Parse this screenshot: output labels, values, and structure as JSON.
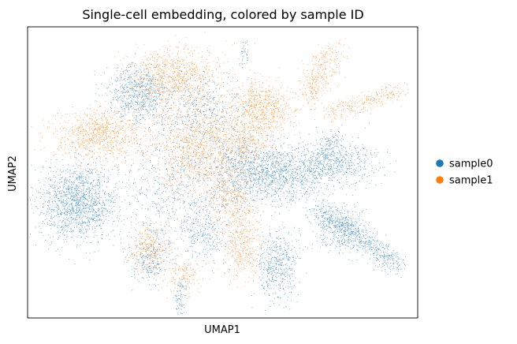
{
  "chart_data": {
    "type": "scatter",
    "title": "Single-cell embedding, colored by sample ID",
    "xlabel": "UMAP1",
    "ylabel": "UMAP2",
    "xticks": [],
    "yticks": [],
    "grid": false,
    "legend_placement": "right",
    "xlim": [
      0,
      100
    ],
    "ylim": [
      0,
      100
    ],
    "series": [
      {
        "name": "sample0",
        "color": "#1f77b4",
        "clusters": [
          {
            "cx": 13,
            "cy": 40,
            "sx": 5.0,
            "sy": 6.5,
            "n": 1500
          },
          {
            "cx": 28,
            "cy": 77,
            "sx": 4.0,
            "sy": 5.0,
            "n": 700
          },
          {
            "cx": 45,
            "cy": 72,
            "sx": 6.0,
            "sy": 6.0,
            "n": 450
          },
          {
            "cx": 40,
            "cy": 45,
            "sx": 8.0,
            "sy": 12.0,
            "n": 900
          },
          {
            "cx": 63,
            "cy": 50,
            "sx": 6.0,
            "sy": 5.0,
            "n": 1200
          },
          {
            "cx": 64,
            "cy": 18,
            "sx": 2.5,
            "sy": 6.0,
            "n": 500
          },
          {
            "cx": 80,
            "cy": 53,
            "sx": 5.0,
            "sy": 4.0,
            "n": 500
          },
          {
            "cx": 80,
            "cy": 30,
            "sx": 4.0,
            "sy": 4.0,
            "n": 350
          },
          {
            "cx": 31,
            "cy": 20,
            "sx": 2.5,
            "sy": 4.0,
            "n": 250
          },
          {
            "cx": 45,
            "cy": 28,
            "sx": 3.0,
            "sy": 4.0,
            "n": 200
          },
          {
            "cx": 53,
            "cy": 52,
            "sx": 3.0,
            "sy": 6.0,
            "n": 300
          }
        ],
        "streaks": [
          {
            "x0": 74,
            "y0": 38,
            "x1": 95,
            "y1": 18,
            "w": 1.8,
            "n": 650
          },
          {
            "x0": 71,
            "y0": 47,
            "x1": 79,
            "y1": 63,
            "w": 1.8,
            "n": 250
          },
          {
            "x0": 39,
            "y0": 12,
            "x1": 39,
            "y1": 2,
            "w": 0.8,
            "n": 80
          },
          {
            "x0": 55,
            "y0": 87,
            "x1": 56,
            "y1": 95,
            "w": 0.6,
            "n": 40
          }
        ]
      },
      {
        "name": "sample1",
        "color": "#ff7f0e",
        "clusters": [
          {
            "cx": 18,
            "cy": 63,
            "sx": 6.0,
            "sy": 4.5,
            "n": 900
          },
          {
            "cx": 37,
            "cy": 83,
            "sx": 6.0,
            "sy": 5.0,
            "n": 900
          },
          {
            "cx": 45,
            "cy": 58,
            "sx": 7.0,
            "sy": 9.0,
            "n": 1400
          },
          {
            "cx": 60,
            "cy": 72,
            "sx": 4.0,
            "sy": 4.5,
            "n": 700
          },
          {
            "cx": 55,
            "cy": 25,
            "sx": 2.5,
            "sy": 5.5,
            "n": 400
          },
          {
            "cx": 31,
            "cy": 24,
            "sx": 2.5,
            "sy": 4.0,
            "n": 300
          },
          {
            "cx": 40,
            "cy": 14,
            "sx": 2.0,
            "sy": 3.0,
            "n": 150
          },
          {
            "cx": 52,
            "cy": 40,
            "sx": 3.0,
            "sy": 5.0,
            "n": 300
          },
          {
            "cx": 56,
            "cy": 60,
            "sx": 3.0,
            "sy": 3.0,
            "n": 200
          }
        ],
        "streaks": [
          {
            "x0": 72,
            "y0": 75,
            "x1": 78,
            "y1": 93,
            "w": 2.2,
            "n": 350
          },
          {
            "x0": 77,
            "y0": 70,
            "x1": 95,
            "y1": 78,
            "w": 1.6,
            "n": 280
          }
        ]
      }
    ]
  }
}
